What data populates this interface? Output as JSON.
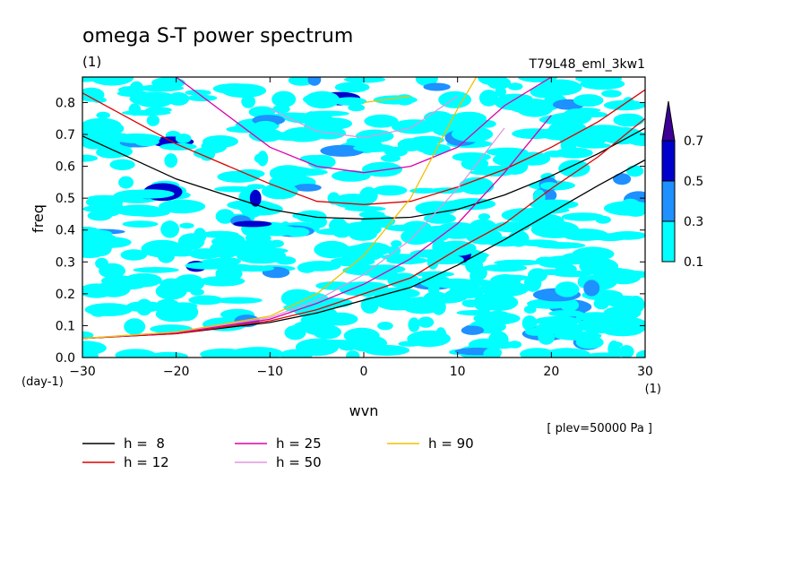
{
  "chart_data": {
    "type": "line",
    "title": "omega S-T power spectrum",
    "subtitle": "(1)",
    "run_label": "T79L48_eml_3kw1",
    "xlabel": "wvn",
    "x_unit": "(1)",
    "ylabel": "freq",
    "y_unit": "(day-1)",
    "level_note": "[ plev=50000 Pa ]",
    "xlim": [
      -30,
      30
    ],
    "ylim": [
      0,
      0.88
    ],
    "xticks": [
      -30,
      -20,
      -10,
      0,
      10,
      20,
      30
    ],
    "yticks": [
      0.0,
      0.1,
      0.2,
      0.3,
      0.4,
      0.5,
      0.6,
      0.7,
      0.8
    ],
    "ytick_labels": [
      "0.0",
      "0.1",
      "0.2",
      "0.3",
      "0.4",
      "0.5",
      "0.6",
      "0.7",
      "0.8"
    ],
    "colorbar": {
      "levels": [
        "0.1",
        "0.3",
        "0.5",
        "0.7"
      ],
      "colors": [
        "#00ffff",
        "#1e90ff",
        "#0000cd",
        "#3c0096"
      ]
    },
    "series": [
      {
        "name": "h = 8",
        "legend_label": "h =  8",
        "color": "#000000",
        "x": [
          -30,
          -20,
          -10,
          -5,
          0,
          5,
          10,
          15,
          20,
          25,
          30
        ],
        "y_gravity": [
          0.695,
          0.56,
          0.465,
          0.44,
          0.435,
          0.44,
          0.465,
          0.51,
          0.57,
          0.64,
          0.72
        ],
        "y_kelvin": [
          0.06,
          0.075,
          0.11,
          0.14,
          0.18,
          0.22,
          0.29,
          0.37,
          0.455,
          0.54,
          0.62
        ]
      },
      {
        "name": "h = 12",
        "legend_label": "h = 12",
        "color": "#dd0000",
        "x": [
          -30,
          -20,
          -10,
          -5,
          0,
          5,
          10,
          15,
          20,
          25,
          30
        ],
        "y_gravity": [
          0.83,
          0.67,
          0.545,
          0.49,
          0.48,
          0.49,
          0.535,
          0.59,
          0.66,
          0.74,
          0.84
        ],
        "y_kelvin": [
          0.06,
          0.075,
          0.115,
          0.15,
          0.2,
          0.25,
          0.34,
          0.42,
          0.53,
          0.63,
          0.75
        ]
      },
      {
        "name": "h = 25",
        "legend_label": "h = 25",
        "color": "#dd00aa",
        "x": [
          -30,
          -20,
          -10,
          -5,
          0,
          5,
          10,
          15,
          20
        ],
        "y_gravity": [
          null,
          0.88,
          0.66,
          0.6,
          0.58,
          0.6,
          0.66,
          0.79,
          0.88
        ],
        "y_kelvin": [
          0.06,
          0.078,
          0.12,
          0.17,
          0.23,
          0.31,
          0.42,
          0.58,
          0.76
        ]
      },
      {
        "name": "h = 50",
        "legend_label": "h = 50",
        "color": "#dd99dd",
        "x": [
          -30,
          -20,
          -10,
          -5,
          0,
          5,
          10,
          15
        ],
        "y_gravity": [
          null,
          null,
          0.78,
          0.71,
          0.69,
          0.72,
          0.82,
          null
        ],
        "y_kelvin": [
          0.06,
          0.08,
          0.125,
          0.18,
          0.26,
          0.37,
          0.53,
          0.72
        ]
      },
      {
        "name": "h = 90",
        "legend_label": "h = 90",
        "color": "#f0c000",
        "x": [
          -30,
          -20,
          -10,
          -5,
          0,
          5,
          10,
          12
        ],
        "y_gravity": [
          null,
          null,
          null,
          null,
          0.8,
          0.82,
          null,
          null
        ],
        "y_kelvin": [
          0.06,
          0.08,
          0.13,
          0.2,
          0.32,
          0.5,
          0.78,
          0.88
        ]
      }
    ],
    "legend": [
      "h =  8",
      "h = 12",
      "h = 25",
      "h = 50",
      "h = 90"
    ],
    "legend_placement": "bottom-left",
    "grid": false
  }
}
